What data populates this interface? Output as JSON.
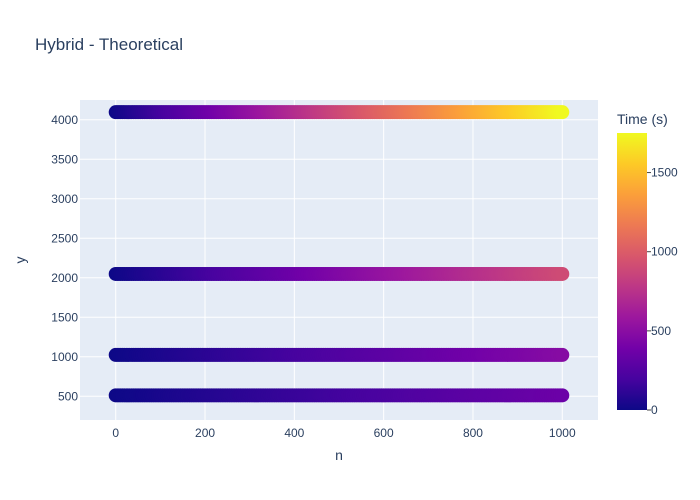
{
  "chart_data": {
    "type": "scatter",
    "title": "Hybrid - Theoretical",
    "xlabel": "n",
    "ylabel": "y",
    "xlim": [
      -80,
      1080
    ],
    "ylim": [
      200,
      4250
    ],
    "xticks": [
      0,
      200,
      400,
      600,
      800,
      1000
    ],
    "yticks": [
      500,
      1000,
      1500,
      2000,
      2500,
      3000,
      3500,
      4000
    ],
    "grid": true,
    "series": [
      {
        "y": 4096,
        "x_range": [
          0,
          1000
        ],
        "time_range": [
          0,
          1750
        ]
      },
      {
        "y": 2048,
        "x_range": [
          0,
          1000
        ],
        "time_range": [
          0,
          900
        ]
      },
      {
        "y": 1024,
        "x_range": [
          0,
          1000
        ],
        "time_range": [
          0,
          480
        ]
      },
      {
        "y": 512,
        "x_range": [
          0,
          1000
        ],
        "time_range": [
          0,
          360
        ]
      }
    ],
    "colorbar": {
      "title": "Time (s)",
      "range": [
        0,
        1750
      ],
      "ticks": [
        0,
        500,
        1000,
        1500
      ],
      "colorscale": "plasma"
    }
  }
}
